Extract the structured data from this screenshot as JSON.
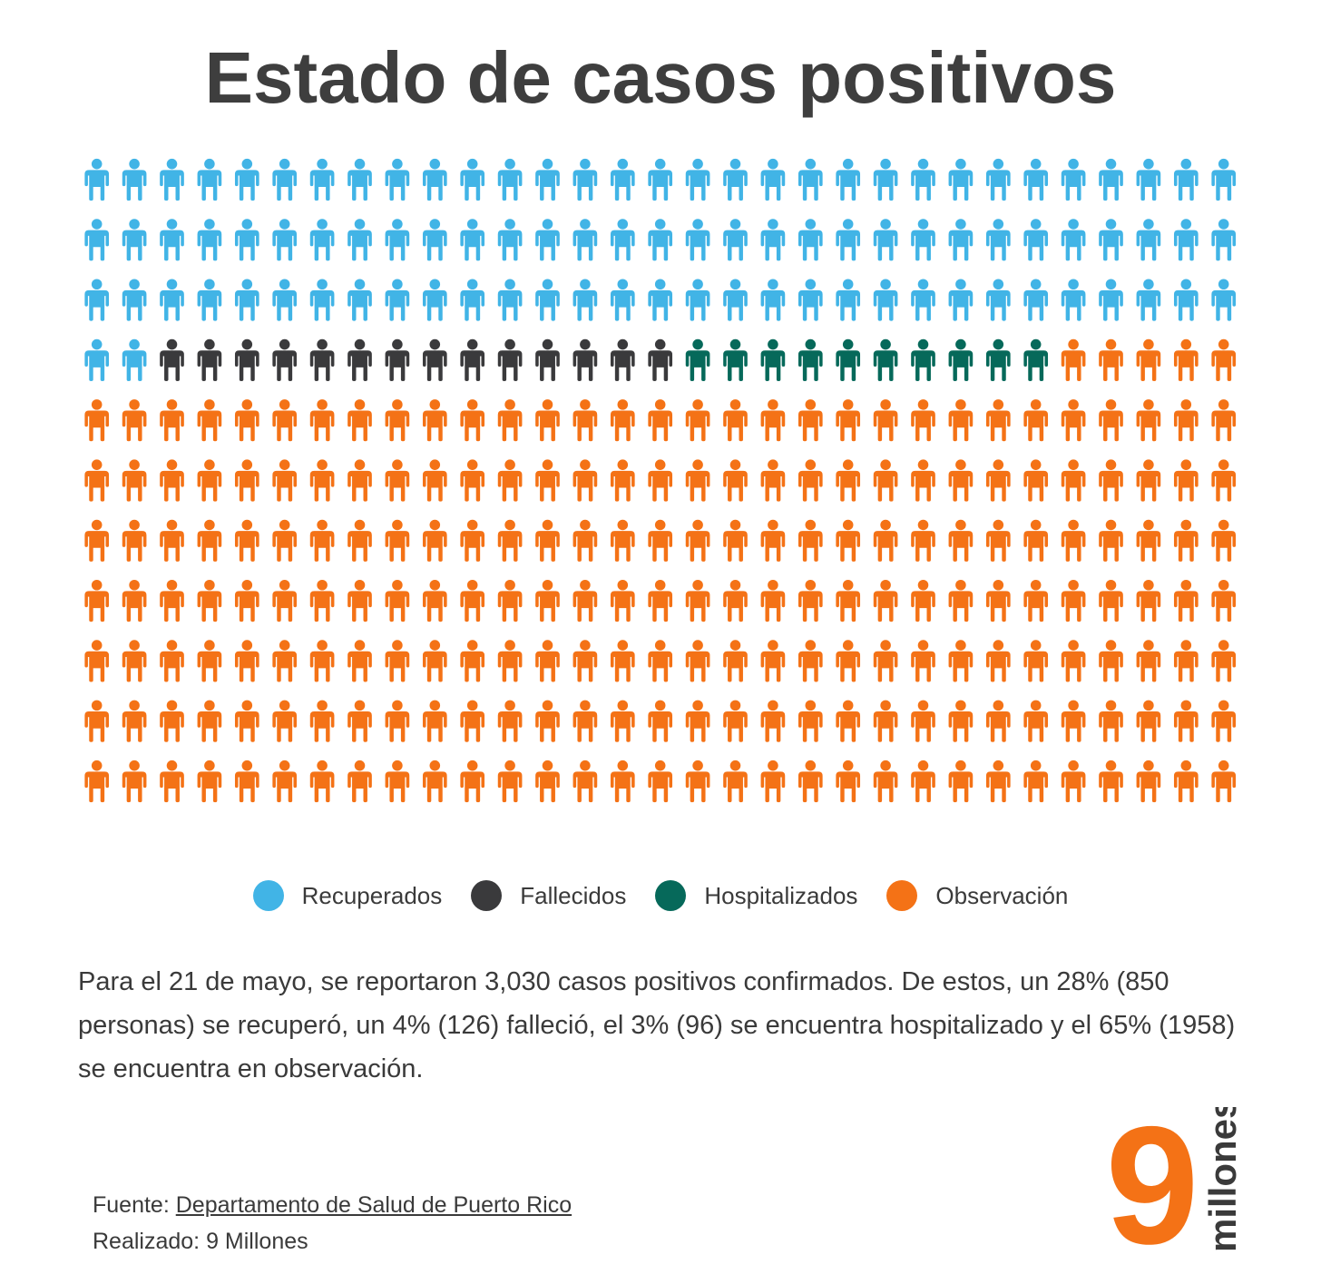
{
  "title": "Estado de casos positivos",
  "chart_data": {
    "type": "waffle",
    "unit": "person",
    "grid": {
      "rows": 11,
      "columns": 31
    },
    "series": [
      {
        "name": "Recuperados",
        "count": 95,
        "color": "#41b4e6",
        "percent": 28,
        "people": 850
      },
      {
        "name": "Fallecidos",
        "count": 14,
        "color": "#3a3a3c",
        "percent": 4,
        "people": 126
      },
      {
        "name": "Hospitalizados",
        "count": 10,
        "color": "#06695a",
        "percent": 3,
        "people": 96
      },
      {
        "name": "Observación",
        "count": 222,
        "color": "#f47216",
        "percent": 65,
        "people": 1958
      }
    ],
    "legend_position": "bottom-center"
  },
  "description": "Para el 21 de mayo, se reportaron 3,030 casos positivos confirmados. De estos, un 28% (850 personas) se recuperó, un 4% (126) falleció, el 3% (96) se encuentra hospitalizado y el 65% (1958) se encuentra en observación.",
  "footer": {
    "source_label": "Fuente:",
    "source_link": "Departamento de Salud de Puerto Rico",
    "credit": "Realizado: 9 Millones"
  },
  "logo": {
    "number": "9",
    "word": "millones",
    "color": "#f47216"
  }
}
